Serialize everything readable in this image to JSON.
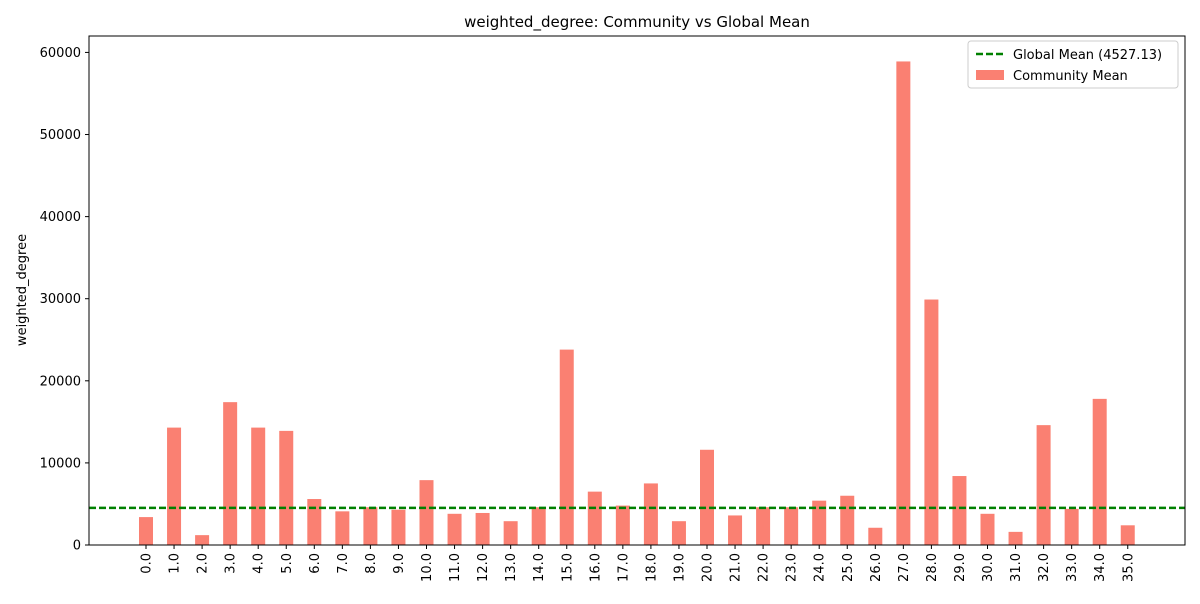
{
  "chart_data": {
    "type": "bar",
    "title": "weighted_degree: Community vs Global Mean",
    "xlabel": "",
    "ylabel": "weighted_degree",
    "ylim": [
      0,
      62000
    ],
    "yticks": [
      0,
      10000,
      20000,
      30000,
      40000,
      50000,
      60000
    ],
    "categories": [
      "0.0",
      "1.0",
      "2.0",
      "3.0",
      "4.0",
      "5.0",
      "6.0",
      "7.0",
      "8.0",
      "9.0",
      "10.0",
      "11.0",
      "12.0",
      "13.0",
      "14.0",
      "15.0",
      "16.0",
      "17.0",
      "18.0",
      "19.0",
      "20.0",
      "21.0",
      "22.0",
      "23.0",
      "24.0",
      "25.0",
      "26.0",
      "27.0",
      "28.0",
      "29.0",
      "30.0",
      "31.0",
      "32.0",
      "33.0",
      "34.0",
      "35.0"
    ],
    "series": [
      {
        "name": "Community Mean",
        "color": "#fa8072",
        "values": [
          3400,
          14300,
          1200,
          17400,
          14300,
          13900,
          5600,
          4100,
          4600,
          4300,
          7900,
          3800,
          3900,
          2900,
          4600,
          23800,
          6500,
          4800,
          7500,
          2900,
          11600,
          3600,
          4600,
          4600,
          5400,
          6000,
          2100,
          58900,
          29900,
          8400,
          3800,
          1600,
          14600,
          4400,
          17800,
          2400
        ]
      }
    ],
    "reference_line": {
      "name": "Global Mean (4527.13)",
      "value": 4527.13,
      "color": "#008000",
      "style": "dashed"
    },
    "legend": {
      "placement": "top-right",
      "entries": [
        "Global Mean (4527.13)",
        "Community Mean"
      ]
    },
    "grid": false
  }
}
